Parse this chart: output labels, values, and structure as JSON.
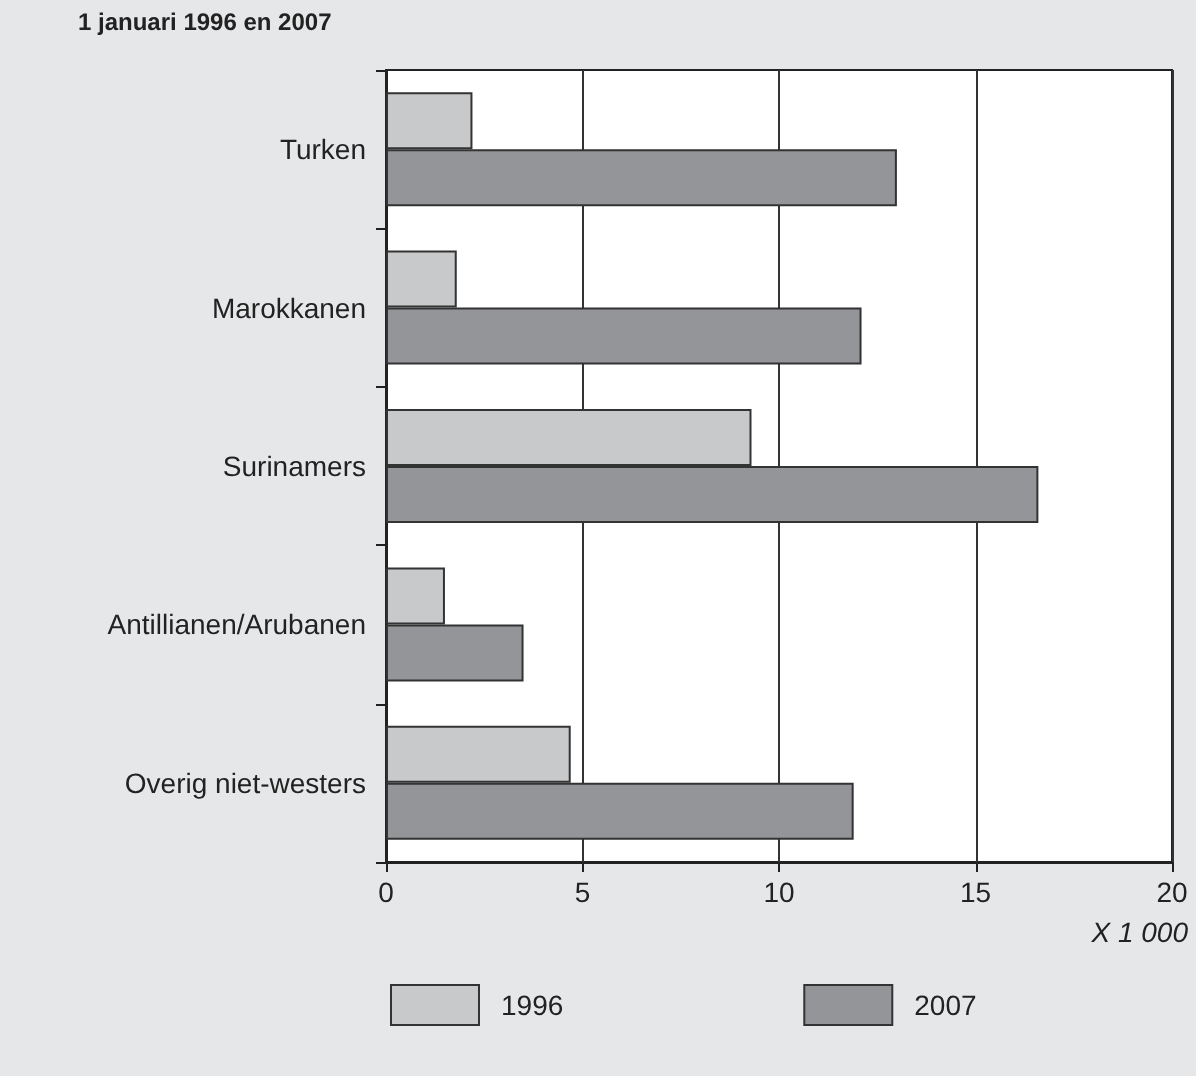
{
  "chart_data": {
    "type": "bar",
    "orientation": "horizontal",
    "title": "1 januari 1996 en 2007",
    "categories": [
      "Turken",
      "Marokkanen",
      "Surinamers",
      "Antillianen/Arubanen",
      "Overig niet-westers"
    ],
    "series": [
      {
        "name": "1996",
        "color": "#c8c9cb",
        "values": [
          2.2,
          1.8,
          9.3,
          1.5,
          4.7
        ]
      },
      {
        "name": "2007",
        "color": "#939598",
        "values": [
          13.0,
          12.1,
          16.6,
          3.5,
          11.9
        ]
      }
    ],
    "xlabel": "X 1 000",
    "xlim": [
      0,
      20
    ],
    "xticks": [
      0,
      5,
      10,
      15,
      20
    ],
    "grid": "x",
    "legend": "bottom left"
  }
}
